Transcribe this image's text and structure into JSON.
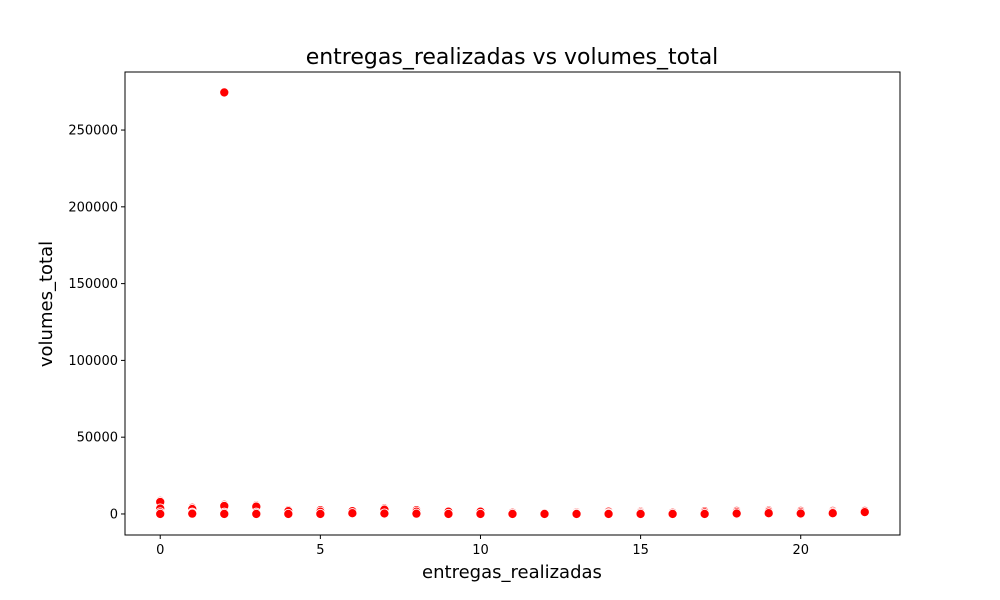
{
  "chart_data": {
    "type": "scatter",
    "title": "entregas_realizadas vs volumes_total",
    "xlabel": "entregas_realizadas",
    "ylabel": "volumes_total",
    "xlim": [
      -1.1,
      23.1
    ],
    "ylim": [
      -13700,
      287800
    ],
    "xticks": [
      0,
      5,
      10,
      15,
      20
    ],
    "yticks": [
      0,
      50000,
      100000,
      150000,
      200000,
      250000
    ],
    "grid": false,
    "marker_color": "#ff0000",
    "marker_edge_color": "#ffffff",
    "points": [
      {
        "x": 0,
        "y": 8500
      },
      {
        "x": 0,
        "y": 7800
      },
      {
        "x": 0,
        "y": 3500
      },
      {
        "x": 0,
        "y": 1000
      },
      {
        "x": 0,
        "y": 0
      },
      {
        "x": 1,
        "y": 4000
      },
      {
        "x": 1,
        "y": 3200
      },
      {
        "x": 1,
        "y": 800
      },
      {
        "x": 1,
        "y": 200
      },
      {
        "x": 2,
        "y": 274500
      },
      {
        "x": 2,
        "y": 6000
      },
      {
        "x": 2,
        "y": 5200
      },
      {
        "x": 2,
        "y": 800
      },
      {
        "x": 2,
        "y": 0
      },
      {
        "x": 3,
        "y": 5500
      },
      {
        "x": 3,
        "y": 4800
      },
      {
        "x": 3,
        "y": 800
      },
      {
        "x": 3,
        "y": 0
      },
      {
        "x": 4,
        "y": 2500
      },
      {
        "x": 4,
        "y": 1800
      },
      {
        "x": 4,
        "y": 0
      },
      {
        "x": 5,
        "y": 2500
      },
      {
        "x": 5,
        "y": 1500
      },
      {
        "x": 5,
        "y": 0
      },
      {
        "x": 6,
        "y": 1800
      },
      {
        "x": 6,
        "y": 500
      },
      {
        "x": 7,
        "y": 3500
      },
      {
        "x": 7,
        "y": 2800
      },
      {
        "x": 7,
        "y": 300
      },
      {
        "x": 8,
        "y": 2500
      },
      {
        "x": 8,
        "y": 1500
      },
      {
        "x": 8,
        "y": 200
      },
      {
        "x": 9,
        "y": 1500
      },
      {
        "x": 9,
        "y": 0
      },
      {
        "x": 10,
        "y": 1500
      },
      {
        "x": 10,
        "y": 0
      },
      {
        "x": 11,
        "y": 800
      },
      {
        "x": 11,
        "y": 0
      },
      {
        "x": 12,
        "y": 500
      },
      {
        "x": 12,
        "y": 0
      },
      {
        "x": 13,
        "y": 1200
      },
      {
        "x": 13,
        "y": 500
      },
      {
        "x": 13,
        "y": 0
      },
      {
        "x": 14,
        "y": 1500
      },
      {
        "x": 14,
        "y": 500
      },
      {
        "x": 14,
        "y": 0
      },
      {
        "x": 15,
        "y": 1500
      },
      {
        "x": 15,
        "y": 800
      },
      {
        "x": 15,
        "y": 0
      },
      {
        "x": 16,
        "y": 800
      },
      {
        "x": 16,
        "y": 0
      },
      {
        "x": 17,
        "y": 1800
      },
      {
        "x": 17,
        "y": 1000
      },
      {
        "x": 17,
        "y": 0
      },
      {
        "x": 18,
        "y": 2000
      },
      {
        "x": 18,
        "y": 1200
      },
      {
        "x": 18,
        "y": 300
      },
      {
        "x": 19,
        "y": 2200
      },
      {
        "x": 19,
        "y": 1500
      },
      {
        "x": 19,
        "y": 500
      },
      {
        "x": 20,
        "y": 2000
      },
      {
        "x": 20,
        "y": 1200
      },
      {
        "x": 20,
        "y": 300
      },
      {
        "x": 21,
        "y": 2000
      },
      {
        "x": 21,
        "y": 1200
      },
      {
        "x": 21,
        "y": 500
      },
      {
        "x": 22,
        "y": 2000
      },
      {
        "x": 22,
        "y": 1200
      }
    ]
  }
}
